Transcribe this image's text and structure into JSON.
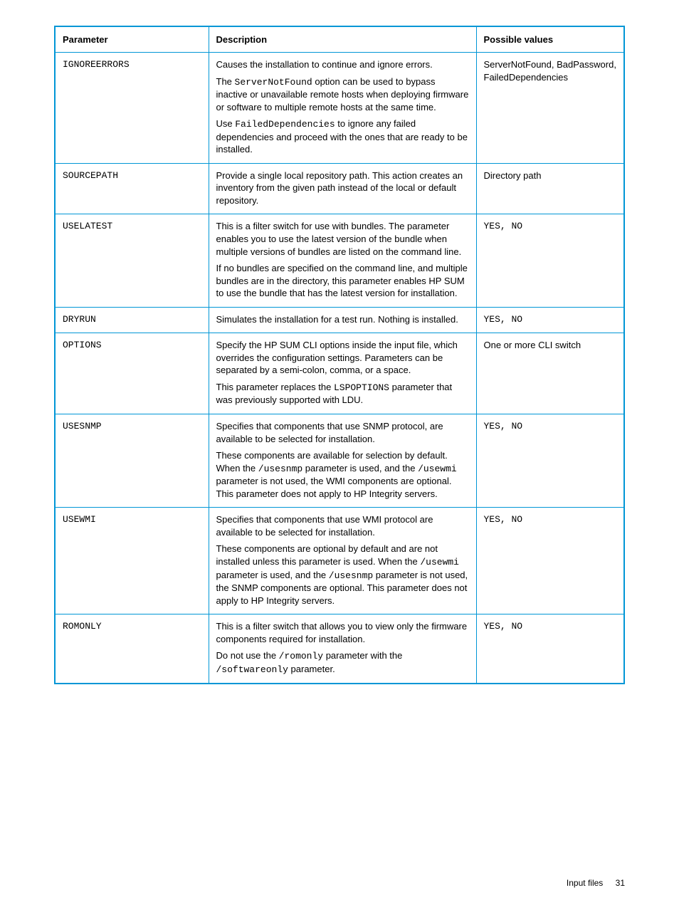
{
  "table": {
    "headers": {
      "parameter": "Parameter",
      "description": "Description",
      "values": "Possible values"
    },
    "rows": [
      {
        "param": "IGNOREERRORS",
        "desc": {
          "p1": "Causes the installation to continue and ignore errors.",
          "p2a": "The ",
          "p2code": "ServerNotFound",
          "p2b": " option can be used to bypass inactive or unavailable remote hosts when deploying firmware or software to multiple remote hosts at the same time.",
          "p3a": "Use ",
          "p3code": "FailedDependencies",
          "p3b": " to ignore any failed dependencies and proceed with the ones that are ready to be installed."
        },
        "values": "ServerNotFound, BadPassword, FailedDependencies"
      },
      {
        "param": "SOURCEPATH",
        "desc": {
          "p1": "Provide a single local repository path. This action creates an inventory from the given path instead of the local or default repository."
        },
        "values": "Directory path"
      },
      {
        "param": "USELATEST",
        "desc": {
          "p1": "This is a filter switch for use with bundles. The parameter enables you to use the latest version of the bundle when multiple versions of bundles are listed on the command line.",
          "p2": "If no bundles are specified on the command line, and multiple bundles are in the directory, this parameter enables HP SUM to use the bundle that has the latest version for installation."
        },
        "values_code": "YES, NO"
      },
      {
        "param": "DRYRUN",
        "desc": {
          "p1": "Simulates the installation for a test run. Nothing is installed."
        },
        "values_code": "YES, NO"
      },
      {
        "param": "OPTIONS",
        "desc": {
          "p1": "Specify the HP SUM CLI options inside the input file, which overrides the configuration settings. Parameters can be separated by a semi-colon, comma, or a space.",
          "p2a": "This parameter replaces the ",
          "p2code": "LSPOPTIONS",
          "p2b": " parameter that was previously supported with LDU."
        },
        "values": "One or more CLI switch"
      },
      {
        "param": "USESNMP",
        "desc": {
          "p1": "Specifies that components that use SNMP protocol, are available to be selected for installation.",
          "p2a": "These components are available for selection by default. When the ",
          "p2code1": "/usesnmp",
          "p2b": " parameter is used, and the  ",
          "p2code2": "/usewmi",
          "p2c": " parameter is not used, the WMI components are optional. This parameter does not apply to HP Integrity servers."
        },
        "values_code": "YES, NO"
      },
      {
        "param": "USEWMI",
        "desc": {
          "p1": "Specifies that components that use WMI protocol are available to be selected for installation.",
          "p2a": "These components are optional by default and are not installed unless this parameter is used. When the ",
          "p2code1": "/usewmi",
          "p2b": " parameter is used, and the ",
          "p2code2": "/usesnmp",
          "p2c": " parameter is not used, the SNMP components are optional. This parameter does not apply to HP Integrity servers."
        },
        "values_code": "YES, NO"
      },
      {
        "param": "ROMONLY",
        "desc": {
          "p1": "This is a filter switch that allows you to view only the firmware components required for installation.",
          "p2a": "Do not use the ",
          "p2code1": "/romonly",
          "p2b": " parameter with the ",
          "p2code2": "/softwareonly",
          "p2c": " parameter."
        },
        "values_code": "YES, NO"
      }
    ]
  },
  "footer": {
    "label": "Input files",
    "page": "31"
  }
}
